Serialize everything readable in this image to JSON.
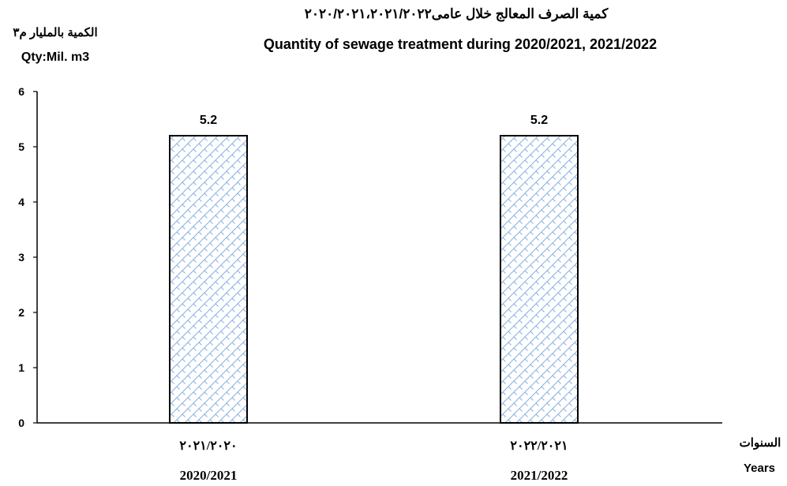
{
  "chart_data": {
    "type": "bar",
    "title_ar": "كمية الصرف المعالج خلال عامى٢٠٢٠/٢٠٢١،٢٠٢١/٢٠٢٢",
    "title": "Quantity of sewage treatment during 2020/2021, 2021/2022",
    "ylabel_ar": "الكمية بالمليار م٣",
    "ylabel": "Qty:Mil. m3",
    "xlabel_ar": "السنوات",
    "xlabel": "Years",
    "categories": [
      "2020/2021",
      "2021/2022"
    ],
    "categories_ar": [
      "٢٠٢١/٢٠٢٠",
      "٢٠٢٢/٢٠٢١"
    ],
    "values": [
      5.2,
      5.2
    ],
    "data_labels": [
      "5.2",
      "5.2"
    ],
    "ylim": [
      0,
      6
    ],
    "yticks": [
      "0",
      "1",
      "2",
      "3",
      "4",
      "5",
      "6"
    ],
    "grid": false,
    "legend": "none",
    "bar_fill": "#8db3e2",
    "bar_pattern": "brick-hatch"
  }
}
